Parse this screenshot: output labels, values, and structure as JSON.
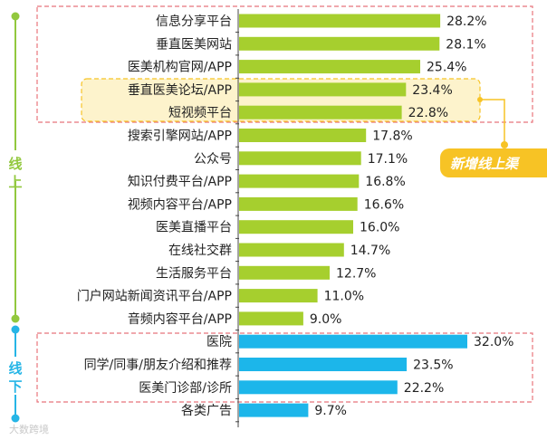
{
  "chart_data": {
    "type": "bar",
    "orientation": "horizontal",
    "categories": [
      "信息分享平台",
      "垂直医美网站",
      "医美机构官网/APP",
      "垂直医美论坛/APP",
      "短视频平台",
      "搜索引擎网站/APP",
      "公众号",
      "知识付费平台/APP",
      "视频内容平台/APP",
      "医美直播平台",
      "在线社交群",
      "生活服务平台",
      "门户网站新闻资讯平台/APP",
      "音频内容平台/APP",
      "医院",
      "同学/同事/朋友介绍和推荐",
      "医美门诊部/诊所",
      "各类广告"
    ],
    "values": [
      28.2,
      28.1,
      25.4,
      23.4,
      22.8,
      17.8,
      17.1,
      16.8,
      16.6,
      16.0,
      14.7,
      12.7,
      11.0,
      9.0,
      32.0,
      23.5,
      22.2,
      9.7
    ],
    "value_labels": [
      "28.2%",
      "28.1%",
      "25.4%",
      "23.4%",
      "22.8%",
      "17.8%",
      "17.1%",
      "16.8%",
      "16.6%",
      "16.0%",
      "14.7%",
      "12.7%",
      "11.0%",
      "9.0%",
      "32.0%",
      "23.5%",
      "22.2%",
      "9.7%"
    ],
    "groups": [
      {
        "name": "线上",
        "chars": [
          "线",
          "上"
        ],
        "color": "#92c83e",
        "start": 0,
        "end": 13
      },
      {
        "name": "线下",
        "chars": [
          "线",
          "下"
        ],
        "color": "#26b5e6",
        "start": 14,
        "end": 16
      }
    ],
    "series_colors": {
      "online": "#a6cf2e",
      "offline": "#1cb6ea",
      "other": "#1cb6ea"
    },
    "callout": {
      "text": "新增线上渠",
      "color": "#f7c325",
      "box_color": "#fdf3cc"
    },
    "highlight_color": "#e8747c",
    "xlim": [
      0,
      35
    ],
    "title": "",
    "xlabel": "",
    "ylabel": ""
  },
  "watermark": "大数跨境"
}
